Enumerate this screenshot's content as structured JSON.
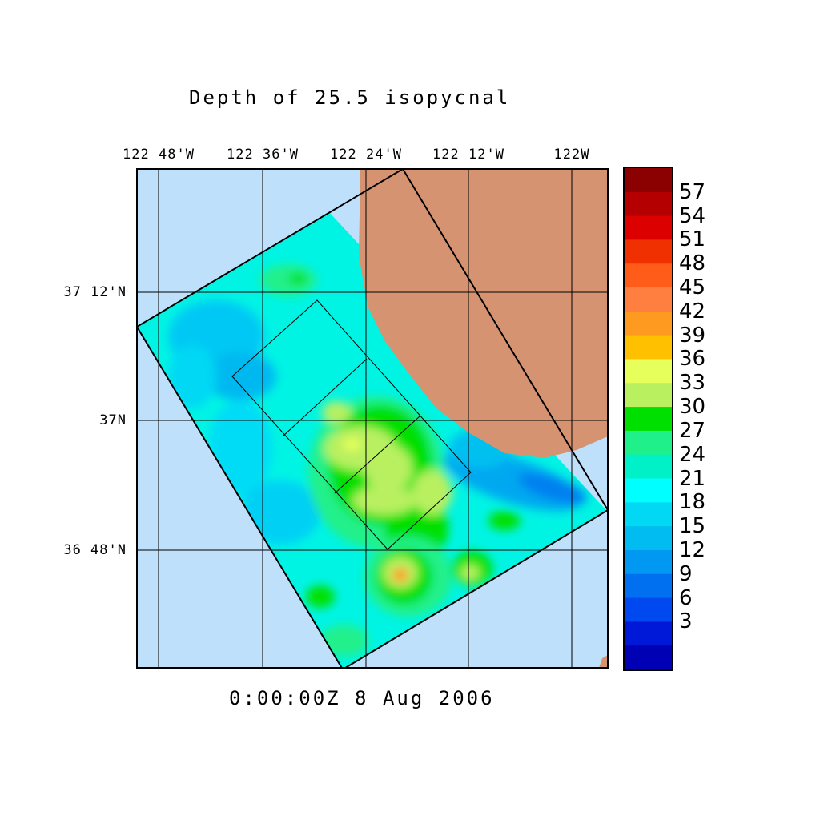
{
  "title": "Depth of 25.5 isopycnal",
  "timestamp": "0:00:00Z   8 Aug 2006",
  "colors": {
    "ocean_outside": "#bfe0fa",
    "land": "#d69372",
    "frame": "#000000"
  },
  "axes": {
    "longitude_labels": [
      "122 48'W",
      "122 36'W",
      "122 24'W",
      "122 12'W",
      "122W"
    ],
    "latitude_labels": [
      "37 12'N",
      "37N",
      "36 48'N"
    ]
  },
  "colorbar": {
    "labels": [
      "57",
      "54",
      "51",
      "48",
      "45",
      "42",
      "39",
      "36",
      "33",
      "30",
      "27",
      "24",
      "21",
      "18",
      "15",
      "12",
      "9",
      "6",
      "3"
    ],
    "colors": [
      "#8b0000",
      "#b40000",
      "#dd0000",
      "#f03000",
      "#ff5c1a",
      "#ff7f40",
      "#ff9a20",
      "#ffc000",
      "#e7ff5a",
      "#b8f060",
      "#00e000",
      "#20f08a",
      "#00f0c8",
      "#00ffff",
      "#00d8f4",
      "#00bcf0",
      "#0098f0",
      "#0070f0",
      "#0048f0",
      "#0018d8",
      "#0000b4"
    ]
  }
}
